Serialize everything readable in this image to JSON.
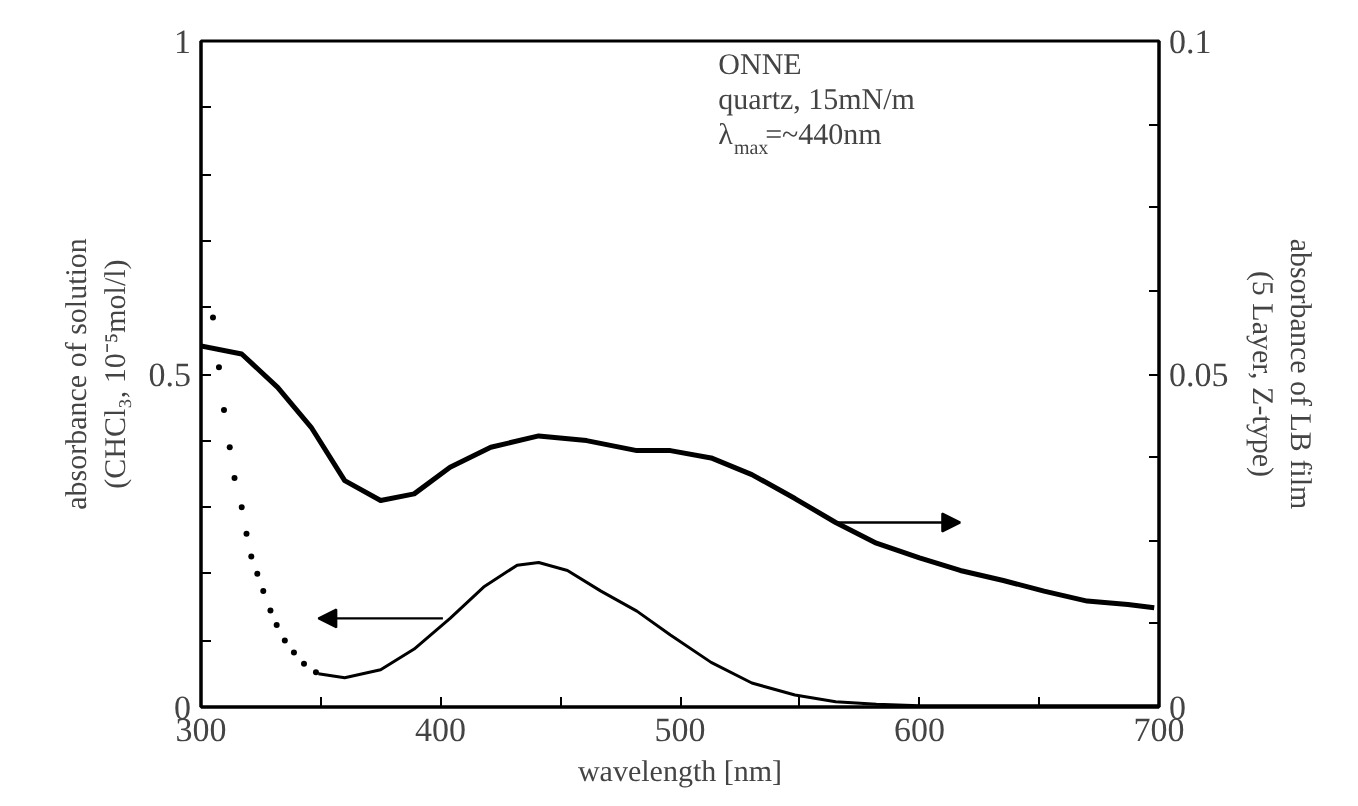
{
  "chart_data": {
    "type": "line",
    "xlabel": "wavelength [nm]",
    "ylabel": "absorbance of solution\n(CHCl₃, 10⁻⁵mol/l)",
    "y2label": "absorbance of LB film\n(5 Layer, Z-type)",
    "annotations": [
      "ONNE",
      "quartz, 15mN/m",
      "λ$_{max}$=~440nm"
    ],
    "xlim": [
      300,
      700
    ],
    "ylim": [
      0,
      1
    ],
    "y2lim": [
      0,
      0.1
    ],
    "xticks": [
      300,
      {
        "value": 350,
        "label": null
      },
      400,
      {
        "value": 450,
        "label": null
      },
      500,
      {
        "value": 550,
        "label": null
      },
      600,
      {
        "value": 650,
        "label": null
      },
      700
    ],
    "yticks": [
      0,
      {
        "value": 0.1,
        "label": null
      },
      {
        "value": 0.2,
        "label": null
      },
      {
        "value": 0.3,
        "label": null
      },
      {
        "value": 0.4,
        "label": null
      },
      0.5,
      {
        "value": 0.6,
        "label": null
      },
      {
        "value": 0.7,
        "label": null
      },
      {
        "value": 0.8,
        "label": null
      },
      {
        "value": 0.9,
        "label": null
      },
      1
    ],
    "y2ticks": [
      0,
      {
        "value": 0.0125,
        "label": null
      },
      {
        "value": 0.025,
        "label": null
      },
      {
        "value": 0.0375,
        "label": null
      },
      0.05,
      {
        "value": 0.0625,
        "label": null
      },
      {
        "value": 0.075,
        "label": null
      },
      {
        "value": 0.0875,
        "label": null
      },
      0.1
    ],
    "grid": false,
    "series": [
      {
        "type": "scatter",
        "marker": "circle",
        "color": "#000000",
        "x": [
          305,
          307.5,
          309.6,
          312,
          314,
          317,
          319,
          321,
          323.5,
          326,
          329,
          331.6,
          335,
          338.8,
          343,
          348
        ],
        "values": [
          0.585,
          0.51,
          0.446,
          0.39,
          0.344,
          0.3,
          0.26,
          0.226,
          0.2,
          0.174,
          0.145,
          0.123,
          0.1,
          0.082,
          0.065,
          0.052
        ]
      },
      {
        "color": "#000000",
        "x": [
          349,
          360,
          375,
          389,
          404,
          418,
          432,
          441,
          453,
          467,
          482,
          496,
          513,
          530,
          548,
          565,
          582,
          600,
          650,
          700
        ],
        "values": [
          0.05,
          0.044,
          0.056,
          0.087,
          0.133,
          0.18,
          0.213,
          0.217,
          0.205,
          0.174,
          0.144,
          0.108,
          0.067,
          0.036,
          0.018,
          0.008,
          0.004,
          0.002,
          0.002,
          0.002
        ]
      },
      {
        "axis": "y2",
        "color": "#000000",
        "x": [
          300,
          317,
          332,
          346,
          360,
          375,
          389,
          404,
          421,
          441,
          461,
          482,
          496,
          513,
          530,
          548,
          565,
          582,
          600,
          617,
          635,
          652,
          670,
          687,
          698
        ],
        "values": [
          0.0542,
          0.053,
          0.048,
          0.042,
          0.034,
          0.031,
          0.032,
          0.036,
          0.039,
          0.0407,
          0.04,
          0.0385,
          0.0385,
          0.0374,
          0.0349,
          0.0313,
          0.0277,
          0.0246,
          0.0224,
          0.0205,
          0.019,
          0.0174,
          0.0159,
          0.0154,
          0.0149
        ]
      }
    ]
  }
}
